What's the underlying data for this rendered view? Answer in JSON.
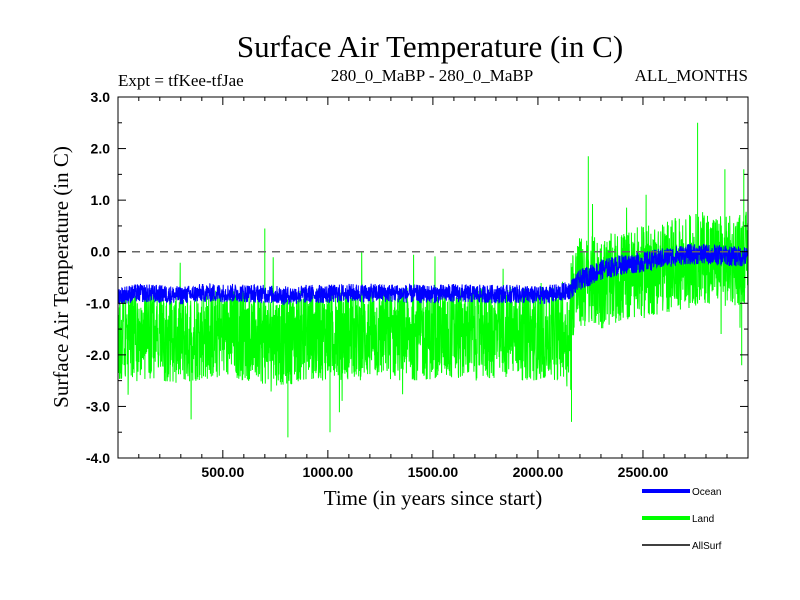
{
  "chart_data": {
    "type": "line",
    "title": "Surface Air Temperature (in C)",
    "experiment": "Expt = tfKee-tfJae",
    "comparison": "280_0_MaBP - 280_0_MaBP",
    "period": "ALL_MONTHS",
    "xlabel": "Time (in years since start)",
    "ylabel": "Surface Air Temperature (in C)",
    "xlim": [
      1,
      3000
    ],
    "ylim": [
      -4.0,
      3.0
    ],
    "x_ticks": [
      500,
      1000,
      1500,
      2000,
      2500
    ],
    "x_tick_labels": [
      "500.00",
      "1000.00",
      "1500.00",
      "2000.00",
      "2500.00"
    ],
    "y_ticks": [
      -4,
      -3,
      -2,
      -1,
      0,
      1,
      2,
      3
    ],
    "y_tick_labels": [
      "-4.0",
      "-3.0",
      "-2.0",
      "-1.0",
      "0.0",
      "1.0",
      "2.0",
      "3.0"
    ],
    "reference_line": 0.0,
    "legend_position": "bottom-right",
    "series": [
      {
        "name": "Land",
        "color": "#00ff00",
        "x": [
          1,
          100,
          200,
          300,
          400,
          500,
          600,
          700,
          800,
          900,
          1000,
          1100,
          1200,
          1300,
          1400,
          1500,
          1600,
          1700,
          1800,
          1900,
          2000,
          2100,
          2150,
          2160,
          2200,
          2300,
          2400,
          2500,
          2600,
          2700,
          2800,
          2900,
          3000
        ],
        "values": [
          -1.7,
          -1.6,
          -1.6,
          -1.7,
          -1.6,
          -1.6,
          -1.6,
          -1.7,
          -1.7,
          -1.6,
          -1.6,
          -1.6,
          -1.6,
          -1.6,
          -1.6,
          -1.6,
          -1.6,
          -1.6,
          -1.6,
          -1.6,
          -1.6,
          -1.6,
          -1.6,
          -0.8,
          -0.6,
          -0.6,
          -0.5,
          -0.4,
          -0.3,
          -0.2,
          -0.1,
          -0.2,
          -0.1
        ],
        "spread": [
          0.9,
          0.9,
          0.9,
          0.9,
          0.9,
          0.9,
          0.9,
          0.9,
          0.9,
          0.9,
          0.9,
          0.9,
          0.9,
          0.9,
          0.9,
          0.9,
          0.9,
          0.9,
          0.9,
          0.9,
          0.9,
          0.9,
          0.9,
          0.9,
          0.9,
          0.9,
          0.9,
          0.9,
          0.9,
          0.9,
          0.9,
          0.9,
          0.9
        ],
        "peaks": [
          [
            700,
            0.45
          ],
          [
            2240,
            1.85
          ],
          [
            2760,
            2.5
          ],
          [
            2890,
            1.6
          ],
          [
            2980,
            1.6
          ]
        ],
        "troughs": [
          [
            810,
            -3.6
          ],
          [
            1010,
            -3.5
          ],
          [
            2160,
            -3.3
          ],
          [
            2970,
            -2.2
          ]
        ]
      },
      {
        "name": "Ocean",
        "color": "#0000ff",
        "x": [
          1,
          100,
          200,
          300,
          400,
          500,
          600,
          700,
          800,
          900,
          1000,
          1100,
          1200,
          1300,
          1400,
          1500,
          1600,
          1700,
          1800,
          1900,
          2000,
          2100,
          2150,
          2200,
          2300,
          2400,
          2500,
          2600,
          2700,
          2800,
          2900,
          3000
        ],
        "values": [
          -0.85,
          -0.8,
          -0.82,
          -0.85,
          -0.8,
          -0.8,
          -0.8,
          -0.82,
          -0.85,
          -0.82,
          -0.82,
          -0.8,
          -0.8,
          -0.8,
          -0.82,
          -0.82,
          -0.8,
          -0.82,
          -0.82,
          -0.82,
          -0.85,
          -0.8,
          -0.75,
          -0.55,
          -0.35,
          -0.25,
          -0.2,
          -0.12,
          -0.05,
          -0.05,
          -0.08,
          -0.1
        ],
        "spread": [
          0.18,
          0.18,
          0.18,
          0.18,
          0.18,
          0.18,
          0.18,
          0.18,
          0.18,
          0.18,
          0.18,
          0.18,
          0.18,
          0.18,
          0.18,
          0.18,
          0.18,
          0.18,
          0.18,
          0.18,
          0.18,
          0.18,
          0.18,
          0.2,
          0.2,
          0.2,
          0.2,
          0.2,
          0.2,
          0.2,
          0.2,
          0.2
        ]
      },
      {
        "name": "AllSurf",
        "color": "#000000",
        "x": [],
        "values": []
      }
    ]
  }
}
